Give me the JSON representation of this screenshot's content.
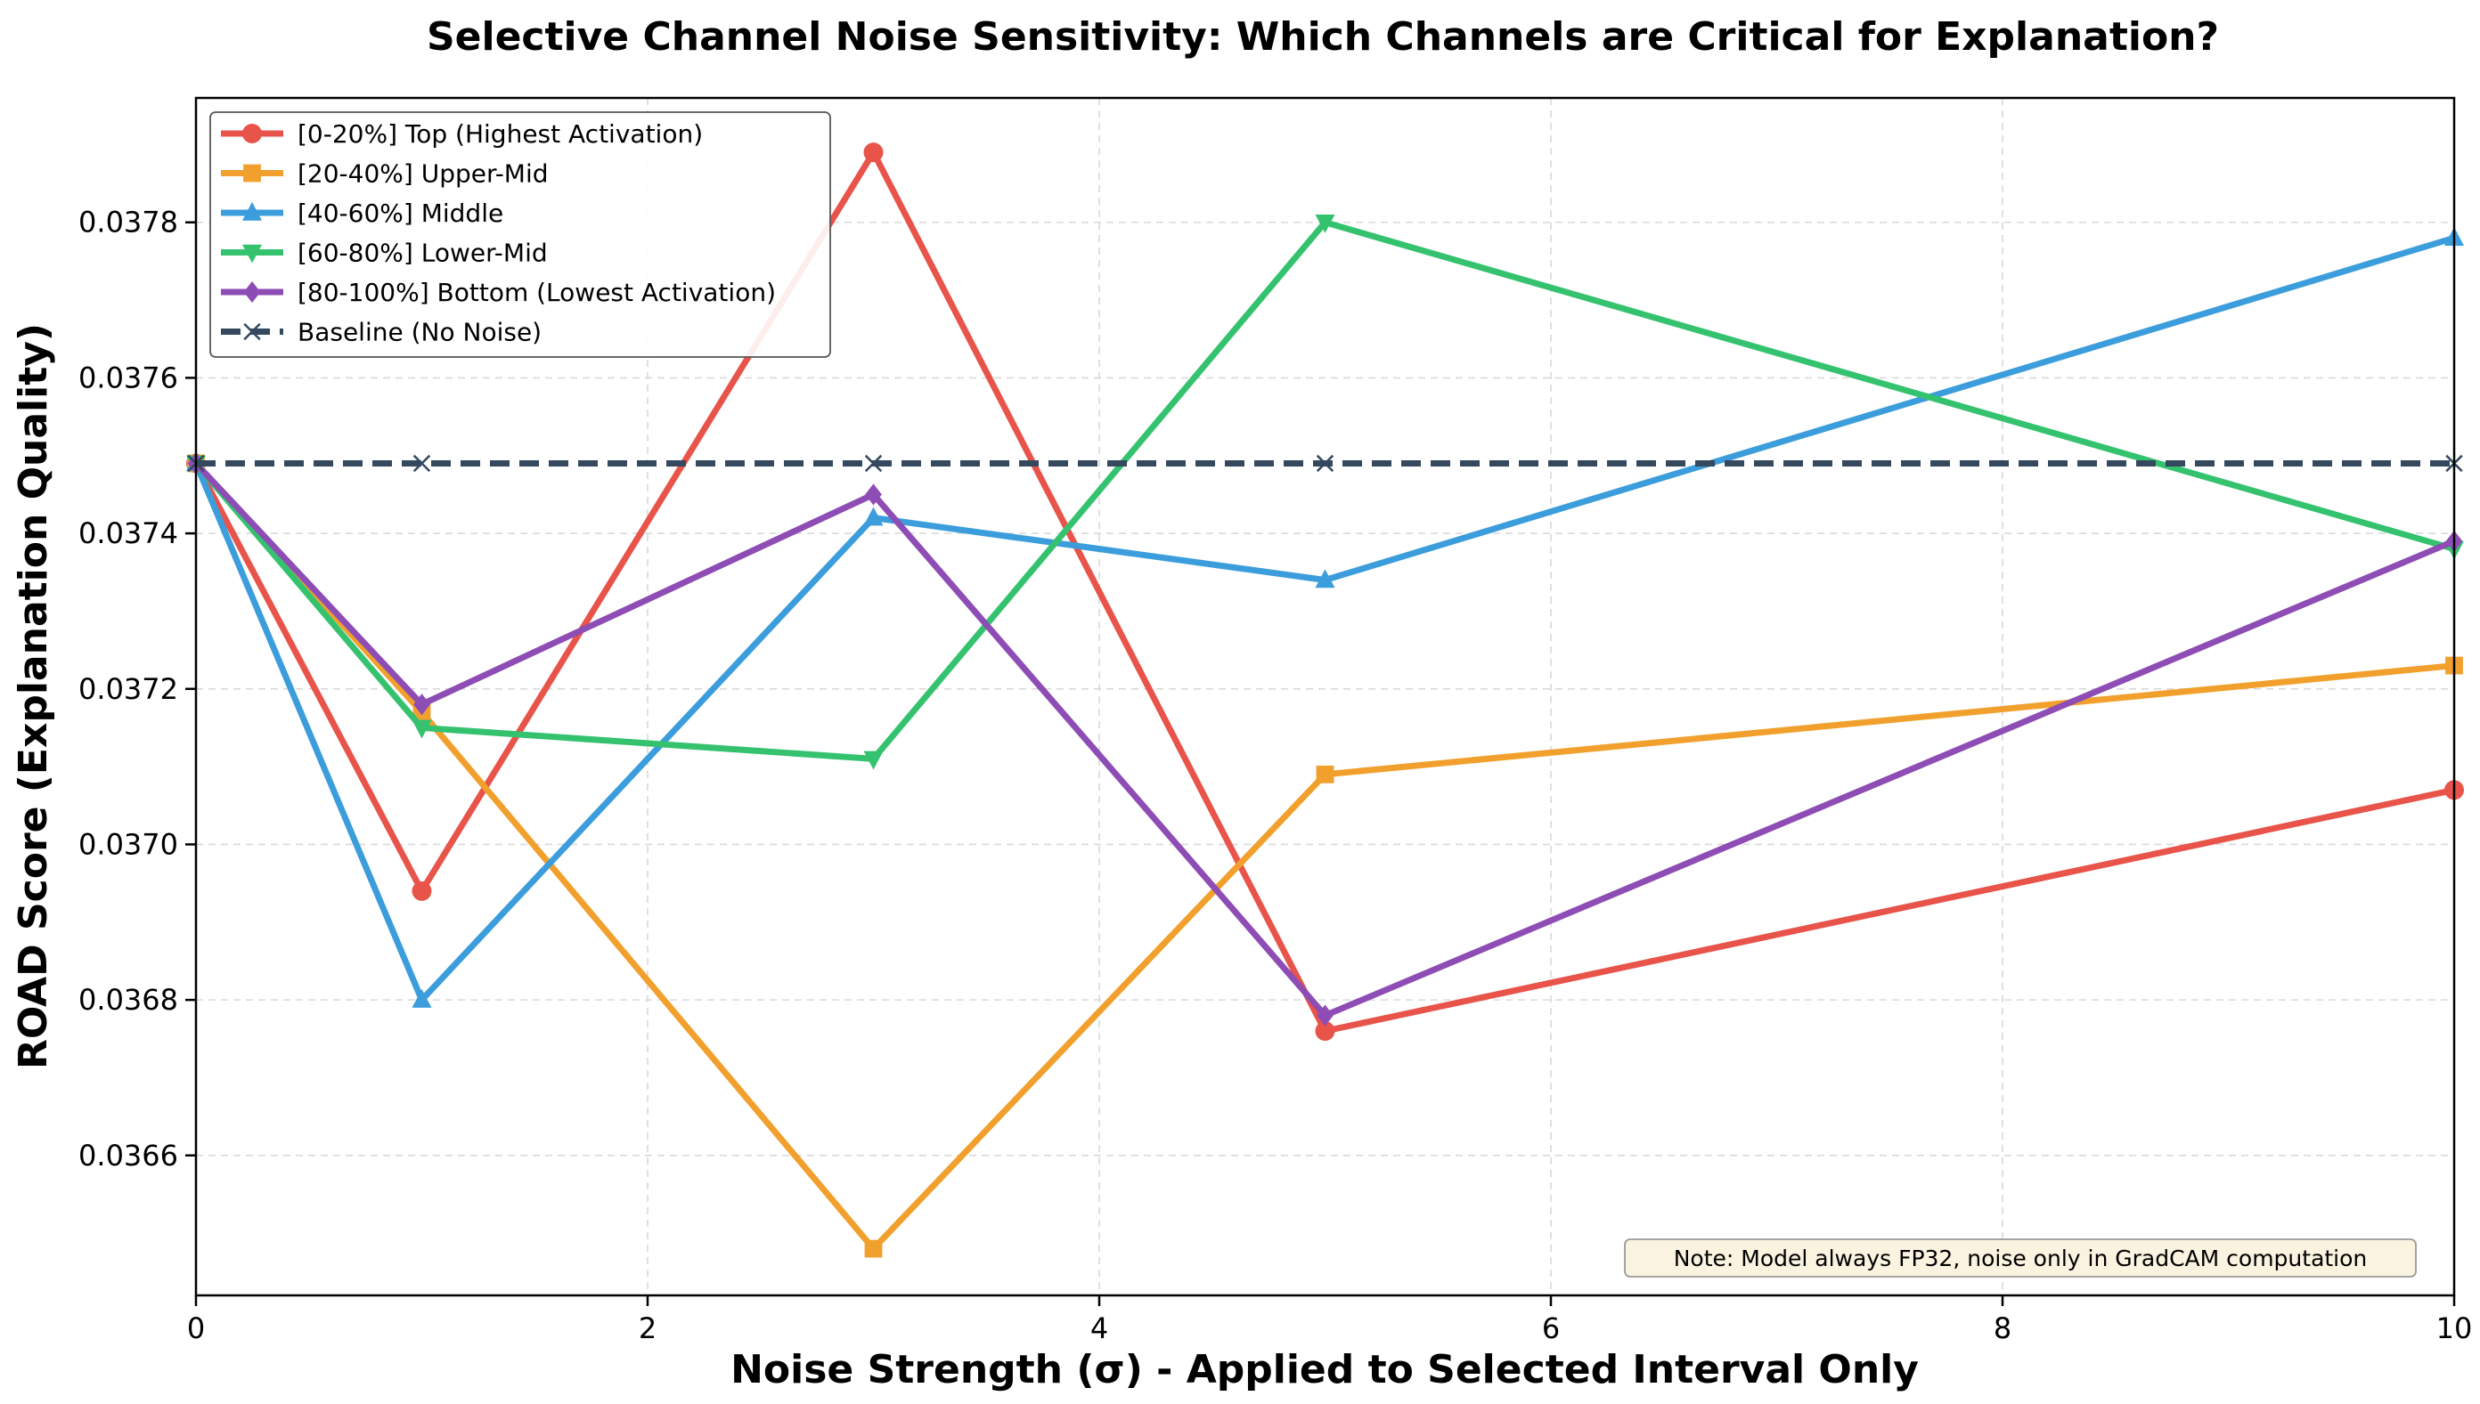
{
  "chart_data": {
    "type": "line",
    "title": "Selective Channel Noise Sensitivity: Which Channels are Critical for Explanation?",
    "xlabel": "Noise Strength (σ) - Applied to Selected Interval Only",
    "ylabel": "ROAD Score (Explanation Quality)",
    "xlim": [
      0,
      10
    ],
    "ylim": [
      0.03642,
      0.03796
    ],
    "xticks": [
      0,
      2,
      4,
      6,
      8,
      10
    ],
    "xtick_labels": [
      "0",
      "2",
      "4",
      "6",
      "8",
      "10"
    ],
    "yticks": [
      0.0366,
      0.0368,
      0.037,
      0.0372,
      0.0374,
      0.0376,
      0.0378
    ],
    "ytick_labels": [
      "0.0366",
      "0.0368",
      "0.0370",
      "0.0372",
      "0.0374",
      "0.0376",
      "0.0378"
    ],
    "grid": true,
    "legend_position": "top-left",
    "x": [
      0,
      1,
      3,
      5,
      10
    ],
    "series": [
      {
        "name": "[0-20%] Top (Highest Activation)",
        "color": "#e8534a",
        "marker": "circle",
        "dashed": false,
        "values": [
          0.03749,
          0.03694,
          0.03789,
          0.03676,
          0.03707
        ]
      },
      {
        "name": "[20-40%] Upper-Mid",
        "color": "#f2a02d",
        "marker": "square",
        "dashed": false,
        "values": [
          0.03749,
          0.03717,
          0.03648,
          0.03709,
          0.03723
        ]
      },
      {
        "name": "[40-60%] Middle",
        "color": "#3b9ddb",
        "marker": "triangle-up",
        "dashed": false,
        "values": [
          0.03749,
          0.0368,
          0.03742,
          0.03734,
          0.03778
        ]
      },
      {
        "name": "[60-80%] Lower-Mid",
        "color": "#35c26f",
        "marker": "triangle-down",
        "dashed": false,
        "values": [
          0.03749,
          0.03715,
          0.03711,
          0.0378,
          0.03738
        ]
      },
      {
        "name": "[80-100%] Bottom (Lowest Activation)",
        "color": "#8e4cb5",
        "marker": "diamond",
        "dashed": false,
        "values": [
          0.03749,
          0.03718,
          0.03745,
          0.03678,
          0.03739
        ]
      },
      {
        "name": "Baseline (No Noise)",
        "color": "#34495e",
        "marker": "x",
        "dashed": true,
        "values": [
          0.03749,
          0.03749,
          0.03749,
          0.03749,
          0.03749
        ]
      }
    ],
    "annotation": "Note: Model always FP32, noise only in GradCAM computation"
  },
  "colors": {
    "axis": "#000000",
    "grid": "#d9d9d9",
    "legend_border": "#555555",
    "note_background": "#faf3e0",
    "note_border": "#999999"
  }
}
